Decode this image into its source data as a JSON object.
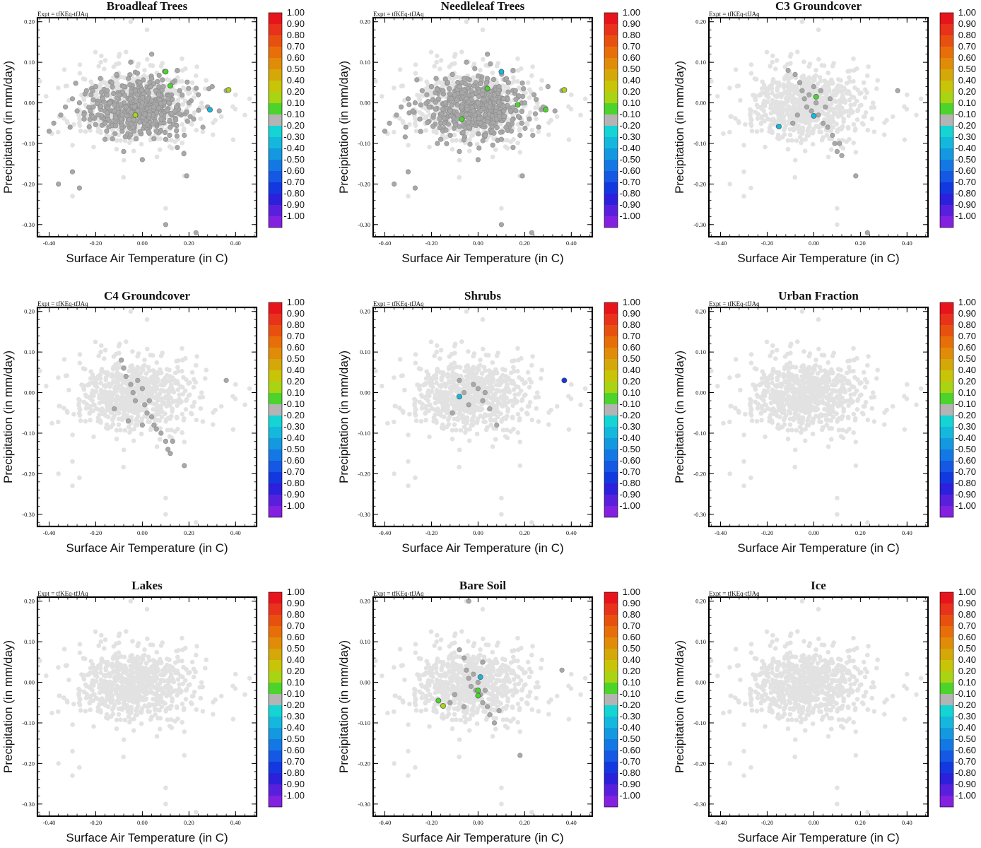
{
  "expt_label": "Expt = tfKEq-tfJAq",
  "xlabel": "Surface Air Temperature (in C)",
  "ylabel": "Precipitation (in mm/day)",
  "x_ticks": [
    "-0.40",
    "-0.20",
    "0.00",
    "0.20",
    "0.40"
  ],
  "y_ticks": [
    "0.20",
    "0.10",
    "0.00",
    "-0.10",
    "-0.20",
    "-0.30"
  ],
  "colorbar": {
    "labels": [
      "1.00",
      "0.90",
      "0.80",
      "0.70",
      "0.60",
      "0.50",
      "0.40",
      "0.20",
      "0.10",
      "-0.10",
      "-0.20",
      "-0.30",
      "-0.40",
      "-0.50",
      "-0.60",
      "-0.70",
      "-0.80",
      "-0.90",
      "-1.00"
    ],
    "colors": [
      "#e8141c",
      "#e8321c",
      "#e85010",
      "#e86e0a",
      "#e08c08",
      "#d4a808",
      "#c8c408",
      "#a8d414",
      "#4cd42c",
      "#b4b4b4",
      "#14d4d4",
      "#14b8dc",
      "#1498e0",
      "#1478e4",
      "#1458e4",
      "#1438e0",
      "#2c20dc",
      "#5820dc",
      "#8420e0"
    ]
  },
  "background_cloud_color": "#e2e2e2",
  "chart_data": [
    {
      "type": "scatter",
      "title": "Broadleaf Trees",
      "xlim": [
        -0.45,
        0.49
      ],
      "ylim": [
        -0.33,
        0.21
      ],
      "cloud": "gray",
      "gray_points": [
        [
          -0.4,
          -0.07
        ],
        [
          -0.38,
          -0.05
        ],
        [
          -0.35,
          -0.03
        ],
        [
          -0.33,
          -0.01
        ],
        [
          -0.31,
          -0.06
        ],
        [
          -0.3,
          0.01
        ],
        [
          -0.28,
          -0.02
        ],
        [
          -0.27,
          0.0
        ],
        [
          -0.25,
          -0.04
        ],
        [
          -0.24,
          0.03
        ],
        [
          -0.22,
          0.02
        ],
        [
          -0.21,
          -0.01
        ],
        [
          -0.2,
          0.04
        ],
        [
          -0.19,
          -0.03
        ],
        [
          -0.18,
          0.06
        ],
        [
          -0.17,
          0.01
        ],
        [
          -0.16,
          -0.05
        ],
        [
          -0.15,
          0.03
        ],
        [
          -0.14,
          0.0
        ],
        [
          -0.13,
          0.05
        ],
        [
          -0.12,
          -0.02
        ],
        [
          -0.11,
          0.07
        ],
        [
          -0.1,
          0.02
        ],
        [
          -0.09,
          -0.04
        ],
        [
          -0.08,
          0.04
        ],
        [
          -0.07,
          -0.01
        ],
        [
          -0.06,
          0.06
        ],
        [
          -0.05,
          0.01
        ],
        [
          -0.04,
          -0.06
        ],
        [
          -0.03,
          0.03
        ],
        [
          -0.02,
          -0.02
        ],
        [
          -0.01,
          0.05
        ],
        [
          0.0,
          0.0
        ],
        [
          0.01,
          -0.05
        ],
        [
          0.02,
          0.03
        ],
        [
          0.03,
          -0.03
        ],
        [
          0.04,
          0.06
        ],
        [
          0.05,
          -0.01
        ],
        [
          0.06,
          -0.07
        ],
        [
          0.07,
          0.02
        ],
        [
          0.08,
          -0.04
        ],
        [
          0.09,
          0.04
        ],
        [
          0.1,
          -0.09
        ],
        [
          0.11,
          0.01
        ],
        [
          0.12,
          -0.06
        ],
        [
          0.13,
          0.05
        ],
        [
          0.14,
          -0.02
        ],
        [
          0.15,
          -0.11
        ],
        [
          0.16,
          0.03
        ],
        [
          0.18,
          -0.08
        ],
        [
          0.2,
          0.0
        ],
        [
          0.22,
          -0.04
        ],
        [
          0.24,
          0.02
        ],
        [
          0.26,
          -0.06
        ],
        [
          0.28,
          -0.01
        ],
        [
          0.3,
          0.04
        ],
        [
          0.33,
          -0.02
        ],
        [
          0.36,
          0.03
        ],
        [
          -0.36,
          -0.2
        ],
        [
          -0.3,
          -0.17
        ],
        [
          -0.27,
          -0.21
        ],
        [
          -0.16,
          -0.09
        ],
        [
          -0.08,
          -0.12
        ],
        [
          0.0,
          -0.14
        ],
        [
          0.1,
          -0.3
        ],
        [
          0.23,
          -0.32
        ],
        [
          0.19,
          -0.18
        ],
        [
          -0.05,
          0.1
        ],
        [
          0.04,
          0.12
        ],
        [
          0.15,
          0.08
        ]
      ],
      "colored_points": [
        {
          "x": 0.1,
          "y": 0.077,
          "value": 0.1
        },
        {
          "x": 0.12,
          "y": 0.042,
          "value": 0.1
        },
        {
          "x": -0.03,
          "y": -0.03,
          "value": 0.2
        },
        {
          "x": 0.29,
          "y": -0.017,
          "value": -0.2
        },
        {
          "x": 0.37,
          "y": 0.032,
          "value": 0.2
        }
      ]
    },
    {
      "type": "scatter",
      "title": "Needleleaf Trees",
      "xlim": [
        -0.45,
        0.49
      ],
      "ylim": [
        -0.33,
        0.21
      ],
      "cloud": "gray",
      "gray_points": [
        [
          -0.4,
          -0.07
        ],
        [
          -0.38,
          -0.05
        ],
        [
          -0.35,
          -0.03
        ],
        [
          -0.33,
          -0.01
        ],
        [
          -0.31,
          -0.06
        ],
        [
          -0.3,
          0.01
        ],
        [
          -0.28,
          -0.02
        ],
        [
          -0.27,
          0.0
        ],
        [
          -0.25,
          -0.04
        ],
        [
          -0.24,
          0.03
        ],
        [
          -0.22,
          0.02
        ],
        [
          -0.21,
          -0.01
        ],
        [
          -0.2,
          0.04
        ],
        [
          -0.19,
          -0.03
        ],
        [
          -0.18,
          0.06
        ],
        [
          -0.17,
          0.01
        ],
        [
          -0.16,
          -0.05
        ],
        [
          -0.15,
          0.03
        ],
        [
          -0.14,
          0.0
        ],
        [
          -0.13,
          0.05
        ],
        [
          -0.12,
          -0.02
        ],
        [
          -0.11,
          0.07
        ],
        [
          -0.1,
          0.02
        ],
        [
          -0.09,
          -0.04
        ],
        [
          -0.08,
          0.04
        ],
        [
          -0.07,
          -0.01
        ],
        [
          -0.06,
          0.06
        ],
        [
          -0.05,
          0.01
        ],
        [
          -0.04,
          -0.06
        ],
        [
          -0.03,
          0.03
        ],
        [
          -0.02,
          -0.02
        ],
        [
          -0.01,
          0.05
        ],
        [
          0.0,
          0.0
        ],
        [
          0.01,
          -0.05
        ],
        [
          0.02,
          0.03
        ],
        [
          0.03,
          -0.03
        ],
        [
          0.04,
          0.06
        ],
        [
          0.05,
          -0.01
        ],
        [
          0.06,
          -0.07
        ],
        [
          0.07,
          0.02
        ],
        [
          0.08,
          -0.04
        ],
        [
          0.09,
          0.04
        ],
        [
          0.1,
          -0.09
        ],
        [
          0.11,
          0.01
        ],
        [
          0.12,
          -0.06
        ],
        [
          0.13,
          0.05
        ],
        [
          0.14,
          -0.02
        ],
        [
          0.15,
          -0.11
        ],
        [
          0.16,
          0.03
        ],
        [
          0.18,
          -0.08
        ],
        [
          0.2,
          0.0
        ],
        [
          0.22,
          -0.04
        ],
        [
          0.24,
          0.02
        ],
        [
          0.26,
          -0.06
        ],
        [
          0.28,
          -0.01
        ],
        [
          0.3,
          0.04
        ],
        [
          0.33,
          -0.02
        ],
        [
          0.36,
          0.03
        ],
        [
          -0.36,
          -0.2
        ],
        [
          -0.3,
          -0.17
        ],
        [
          -0.27,
          -0.21
        ],
        [
          -0.16,
          -0.09
        ],
        [
          -0.08,
          -0.12
        ],
        [
          0.0,
          -0.14
        ],
        [
          0.1,
          -0.3
        ],
        [
          0.23,
          -0.32
        ],
        [
          0.19,
          -0.18
        ],
        [
          -0.05,
          0.1
        ],
        [
          0.04,
          0.12
        ],
        [
          0.15,
          0.08
        ]
      ],
      "colored_points": [
        {
          "x": 0.1,
          "y": 0.077,
          "value": -0.2
        },
        {
          "x": 0.04,
          "y": 0.035,
          "value": 0.1
        },
        {
          "x": 0.17,
          "y": -0.005,
          "value": 0.1
        },
        {
          "x": -0.07,
          "y": -0.04,
          "value": 0.1
        },
        {
          "x": 0.29,
          "y": -0.017,
          "value": 0.1
        },
        {
          "x": 0.37,
          "y": 0.032,
          "value": 0.2
        }
      ]
    },
    {
      "type": "scatter",
      "title": "C3 Groundcover",
      "xlim": [
        -0.45,
        0.49
      ],
      "ylim": [
        -0.33,
        0.21
      ],
      "cloud": "light",
      "gray_points": [
        [
          -0.11,
          0.08
        ],
        [
          -0.08,
          0.07
        ],
        [
          -0.06,
          0.05
        ],
        [
          -0.05,
          0.03
        ],
        [
          -0.04,
          0.01
        ],
        [
          -0.03,
          -0.01
        ],
        [
          -0.02,
          0.02
        ],
        [
          -0.01,
          -0.02
        ],
        [
          0.01,
          0.0
        ],
        [
          0.02,
          -0.03
        ],
        [
          0.03,
          0.03
        ],
        [
          0.04,
          -0.05
        ],
        [
          0.05,
          -0.01
        ],
        [
          0.06,
          -0.06
        ],
        [
          0.07,
          0.01
        ],
        [
          0.08,
          -0.08
        ],
        [
          0.09,
          -0.1
        ],
        [
          0.1,
          -0.12
        ],
        [
          0.11,
          -0.1
        ],
        [
          0.12,
          -0.13
        ],
        [
          -0.07,
          -0.03
        ],
        [
          -0.09,
          -0.05
        ],
        [
          0.0,
          0.04
        ],
        [
          0.36,
          0.03
        ],
        [
          0.18,
          -0.18
        ],
        [
          0.23,
          -0.32
        ]
      ],
      "colored_points": [
        {
          "x": 0.01,
          "y": 0.015,
          "value": 0.1
        },
        {
          "x": -0.15,
          "y": -0.058,
          "value": -0.2
        },
        {
          "x": 0.0,
          "y": -0.032,
          "value": -0.2
        }
      ]
    },
    {
      "type": "scatter",
      "title": "C4 Groundcover",
      "xlim": [
        -0.45,
        0.49
      ],
      "ylim": [
        -0.33,
        0.21
      ],
      "cloud": "light",
      "gray_points": [
        [
          -0.09,
          0.08
        ],
        [
          -0.08,
          0.06
        ],
        [
          -0.07,
          0.04
        ],
        [
          -0.05,
          0.02
        ],
        [
          -0.04,
          0.0
        ],
        [
          -0.03,
          -0.02
        ],
        [
          -0.02,
          0.03
        ],
        [
          0.0,
          0.01
        ],
        [
          0.01,
          -0.03
        ],
        [
          0.02,
          -0.05
        ],
        [
          0.03,
          -0.02
        ],
        [
          0.04,
          -0.06
        ],
        [
          0.05,
          -0.08
        ],
        [
          0.06,
          -0.09
        ],
        [
          0.08,
          -0.1
        ],
        [
          0.1,
          -0.12
        ],
        [
          0.11,
          -0.14
        ],
        [
          0.12,
          -0.15
        ],
        [
          0.13,
          -0.12
        ],
        [
          -0.12,
          -0.04
        ],
        [
          -0.06,
          -0.07
        ],
        [
          0.0,
          -0.08
        ],
        [
          0.36,
          0.03
        ],
        [
          0.18,
          -0.18
        ]
      ],
      "colored_points": []
    },
    {
      "type": "scatter",
      "title": "Shrubs",
      "xlim": [
        -0.45,
        0.49
      ],
      "ylim": [
        -0.33,
        0.21
      ],
      "cloud": "light",
      "gray_points": [
        [
          -0.08,
          0.03
        ],
        [
          -0.06,
          0.0
        ],
        [
          -0.04,
          -0.03
        ],
        [
          -0.02,
          0.02
        ],
        [
          0.0,
          0.01
        ],
        [
          0.02,
          -0.02
        ],
        [
          0.03,
          0.0
        ],
        [
          0.05,
          -0.04
        ],
        [
          0.08,
          -0.08
        ],
        [
          -0.11,
          -0.05
        ]
      ],
      "colored_points": [
        {
          "x": -0.08,
          "y": -0.01,
          "value": -0.2
        },
        {
          "x": 0.37,
          "y": 0.03,
          "value": -0.7
        }
      ]
    },
    {
      "type": "scatter",
      "title": "Urban Fraction",
      "xlim": [
        -0.45,
        0.49
      ],
      "ylim": [
        -0.33,
        0.21
      ],
      "cloud": "light",
      "gray_points": [],
      "colored_points": []
    },
    {
      "type": "scatter",
      "title": "Lakes",
      "xlim": [
        -0.45,
        0.49
      ],
      "ylim": [
        -0.33,
        0.21
      ],
      "cloud": "light",
      "gray_points": [],
      "colored_points": []
    },
    {
      "type": "scatter",
      "title": "Bare Soil",
      "xlim": [
        -0.45,
        0.49
      ],
      "ylim": [
        -0.33,
        0.21
      ],
      "cloud": "light",
      "gray_points": [
        [
          -0.08,
          0.08
        ],
        [
          -0.06,
          0.06
        ],
        [
          -0.05,
          0.03
        ],
        [
          -0.04,
          0.01
        ],
        [
          -0.03,
          -0.01
        ],
        [
          -0.02,
          0.02
        ],
        [
          -0.01,
          -0.02
        ],
        [
          0.0,
          0.0
        ],
        [
          0.01,
          -0.03
        ],
        [
          0.02,
          -0.05
        ],
        [
          0.03,
          -0.02
        ],
        [
          0.04,
          -0.06
        ],
        [
          0.05,
          -0.08
        ],
        [
          0.07,
          -0.1
        ],
        [
          0.09,
          -0.07
        ],
        [
          -0.1,
          -0.03
        ],
        [
          -0.12,
          -0.05
        ],
        [
          -0.06,
          -0.06
        ],
        [
          0.02,
          0.05
        ],
        [
          -0.04,
          0.2
        ],
        [
          0.36,
          0.03
        ],
        [
          0.18,
          -0.18
        ]
      ],
      "colored_points": [
        {
          "x": 0.01,
          "y": 0.013,
          "value": -0.2
        },
        {
          "x": -0.17,
          "y": -0.045,
          "value": 0.1
        },
        {
          "x": -0.15,
          "y": -0.058,
          "value": 0.2
        },
        {
          "x": 0.0,
          "y": -0.02,
          "value": 0.1
        },
        {
          "x": 0.0,
          "y": -0.033,
          "value": 0.1
        }
      ]
    },
    {
      "type": "scatter",
      "title": "Ice",
      "xlim": [
        -0.45,
        0.49
      ],
      "ylim": [
        -0.33,
        0.21
      ],
      "cloud": "light",
      "gray_points": [],
      "colored_points": []
    }
  ]
}
